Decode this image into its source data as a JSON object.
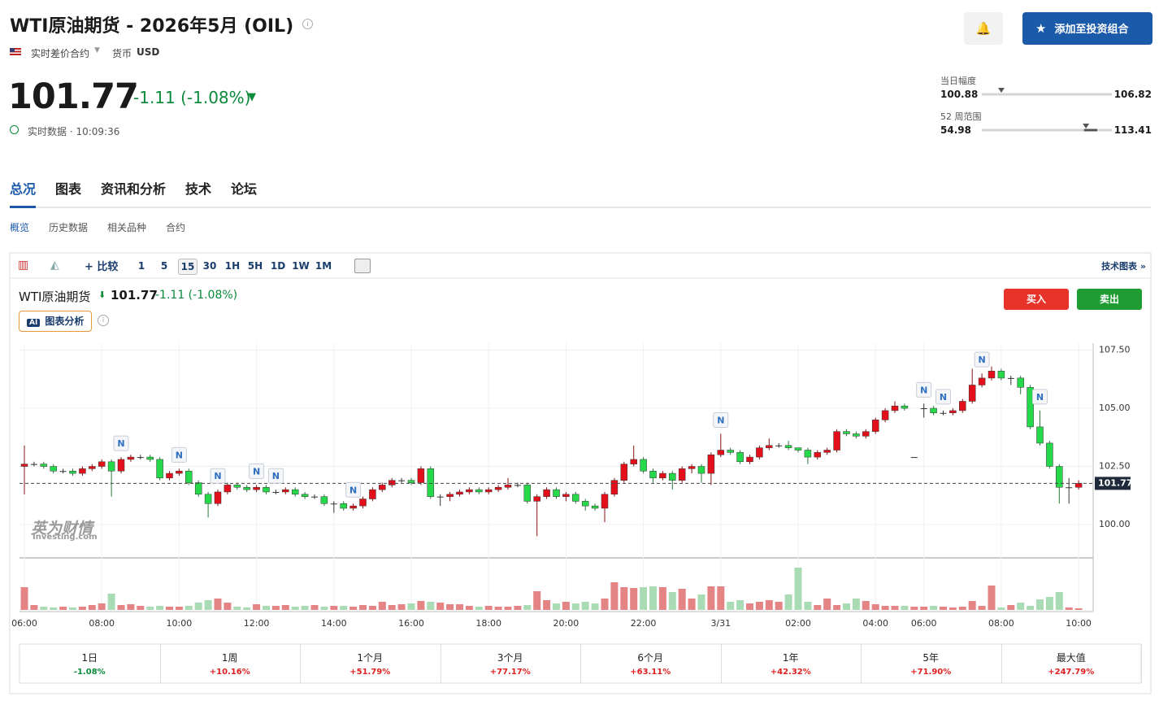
{
  "header": {
    "title": "WTI原油期货 - 2026年5月 (OIL)",
    "contract": "实时差价合约",
    "currency_label": "货币",
    "currency": "USD",
    "portfolio_button": "添加至投资组合"
  },
  "quote": {
    "price": 101.77,
    "change": "-1.11 (-1.08%)",
    "status": "实时数据 · 10:09:36"
  },
  "ranges": {
    "day_label": "当日幅度",
    "day_low": 100.88,
    "day_high": 106.82,
    "week52_label": "52 周范围",
    "week52_low": 54.98,
    "week52_high": 113.41
  },
  "tabs": [
    "总况",
    "图表",
    "资讯和分析",
    "技术",
    "论坛"
  ],
  "subtabs": [
    "概览",
    "历史数据",
    "相关品种",
    "合约"
  ],
  "toolbar": {
    "compare": "比较",
    "intervals": [
      "1",
      "5",
      "15",
      "30",
      "1H",
      "5H",
      "1D",
      "1W",
      "1M"
    ],
    "active_interval": "15",
    "link": "技术图表 »"
  },
  "legend": {
    "name": "WTI原油期货",
    "change": "-1.11 (-1.08%)",
    "ai": "图表分析",
    "buy": "买入",
    "sell": "卖出"
  },
  "watermark": {
    "cn": "英为财情",
    "en": "Investing.com"
  },
  "chart_data": {
    "type": "candlestick",
    "categories": [
      "06:00",
      null,
      null,
      null,
      null,
      null,
      null,
      null,
      "08:00",
      null,
      null,
      null,
      null,
      null,
      null,
      null,
      "10:00",
      null,
      null,
      null,
      null,
      null,
      null,
      null,
      "12:00",
      null,
      null,
      null,
      null,
      null,
      null,
      null,
      "14:00",
      null,
      null,
      null,
      null,
      null,
      null,
      null,
      "16:00",
      null,
      null,
      null,
      null,
      null,
      null,
      null,
      "18:00",
      null,
      null,
      null,
      null,
      null,
      null,
      null,
      "20:00",
      null,
      null,
      null,
      null,
      null,
      null,
      null,
      "22:00",
      null,
      null,
      null,
      null,
      null,
      null,
      null,
      "3/31",
      null,
      null,
      null,
      null,
      null,
      null,
      null,
      "02:00",
      null,
      null,
      null,
      null,
      null,
      null,
      null,
      "04:00",
      null,
      null,
      null,
      null,
      "06:00",
      null,
      null,
      null,
      null,
      null,
      null,
      null,
      "08:00",
      null,
      null,
      null,
      null,
      null,
      null,
      null,
      "10:00"
    ],
    "open": [
      102.5,
      102.6,
      102.6,
      102.5,
      102.3,
      102.3,
      102.2,
      102.4,
      102.5,
      102.7,
      102.3,
      102.8,
      102.9,
      102.9,
      102.8,
      102.0,
      102.2,
      102.3,
      101.8,
      101.3,
      100.9,
      101.4,
      101.7,
      101.6,
      101.5,
      101.6,
      101.4,
      101.4,
      101.5,
      101.3,
      101.2,
      101.2,
      100.9,
      100.9,
      100.7,
      100.8,
      101.1,
      101.5,
      101.7,
      101.9,
      101.9,
      101.8,
      102.4,
      101.2,
      101.2,
      101.3,
      101.4,
      101.5,
      101.4,
      101.5,
      101.6,
      101.7,
      101.7,
      101.0,
      101.2,
      101.5,
      101.2,
      101.3,
      101.0,
      100.8,
      100.7,
      101.3,
      101.9,
      102.6,
      102.8,
      102.3,
      102.0,
      102.2,
      101.9,
      102.4,
      102.5,
      102.2,
      103.0,
      103.2,
      103.1,
      102.7,
      102.9,
      103.3,
      103.4,
      103.4,
      103.3,
      103.2,
      102.9,
      103.1,
      103.2,
      104.0,
      103.9,
      103.8,
      104.0,
      104.5,
      104.9,
      105.1,
      102.9,
      105.0,
      105.0,
      104.8,
      104.8,
      104.9,
      105.3,
      106.0,
      106.3,
      106.6,
      106.3,
      106.3,
      105.9,
      104.2,
      103.5,
      102.5,
      101.6,
      101.6
    ],
    "high": [
      103.4,
      102.7,
      102.7,
      102.6,
      102.4,
      102.4,
      102.5,
      102.6,
      102.8,
      102.8,
      102.9,
      103.0,
      103.0,
      103.0,
      102.9,
      102.3,
      102.4,
      102.4,
      101.9,
      101.4,
      101.5,
      101.8,
      101.8,
      101.7,
      101.7,
      101.7,
      101.5,
      101.6,
      101.6,
      101.4,
      101.3,
      101.3,
      101.0,
      101.0,
      100.9,
      101.2,
      101.6,
      101.8,
      102.0,
      102.0,
      102.0,
      102.5,
      102.5,
      101.3,
      101.4,
      101.5,
      101.6,
      101.6,
      101.6,
      101.7,
      102.0,
      101.8,
      101.8,
      101.3,
      101.6,
      101.6,
      101.4,
      101.4,
      101.1,
      100.9,
      101.4,
      102.0,
      102.7,
      103.4,
      102.9,
      102.4,
      102.3,
      102.3,
      102.5,
      102.6,
      102.6,
      103.1,
      103.9,
      103.3,
      103.2,
      103.0,
      103.4,
      103.7,
      103.5,
      103.6,
      103.3,
      103.3,
      103.2,
      103.3,
      104.1,
      104.1,
      104.0,
      104.1,
      104.6,
      105.0,
      105.3,
      105.2,
      102.9,
      105.2,
      105.1,
      104.9,
      105.0,
      105.4,
      106.7,
      106.5,
      106.8,
      106.7,
      106.4,
      106.4,
      106.0,
      104.9,
      103.6,
      102.6,
      102.0,
      101.9
    ],
    "low": [
      101.3,
      102.5,
      102.4,
      102.2,
      102.2,
      102.1,
      102.1,
      102.3,
      102.4,
      101.2,
      102.2,
      102.7,
      102.8,
      102.7,
      101.9,
      101.9,
      102.1,
      101.7,
      101.2,
      100.3,
      100.8,
      101.3,
      101.5,
      101.4,
      101.4,
      101.3,
      101.3,
      101.3,
      101.2,
      101.1,
      101.1,
      100.8,
      100.5,
      100.6,
      100.6,
      100.7,
      101.0,
      101.4,
      101.6,
      101.8,
      101.7,
      101.7,
      101.1,
      100.8,
      101.0,
      101.2,
      101.3,
      101.3,
      101.3,
      101.4,
      101.5,
      101.6,
      100.9,
      99.5,
      101.1,
      101.1,
      101.0,
      100.9,
      100.6,
      100.6,
      100.1,
      101.2,
      101.8,
      102.5,
      102.2,
      101.8,
      101.9,
      101.5,
      101.8,
      102.2,
      101.8,
      101.7,
      102.9,
      103.0,
      102.6,
      102.6,
      102.8,
      103.2,
      103.3,
      103.2,
      103.1,
      102.6,
      102.8,
      103.0,
      103.1,
      103.8,
      103.7,
      103.7,
      103.9,
      104.4,
      104.8,
      104.9,
      102.9,
      104.6,
      104.7,
      104.7,
      104.7,
      104.8,
      105.2,
      105.9,
      106.2,
      106.2,
      106.0,
      105.6,
      104.1,
      103.4,
      102.4,
      100.9,
      100.9,
      101.5
    ],
    "close": [
      102.6,
      102.6,
      102.5,
      102.3,
      102.3,
      102.2,
      102.4,
      102.5,
      102.7,
      102.3,
      102.8,
      102.9,
      102.9,
      102.8,
      102.0,
      102.2,
      102.3,
      101.8,
      101.3,
      100.9,
      101.4,
      101.7,
      101.6,
      101.5,
      101.6,
      101.4,
      101.4,
      101.5,
      101.3,
      101.2,
      101.2,
      100.9,
      100.9,
      100.7,
      100.8,
      101.1,
      101.5,
      101.7,
      101.9,
      101.9,
      101.8,
      102.4,
      101.2,
      101.2,
      101.3,
      101.4,
      101.5,
      101.4,
      101.5,
      101.6,
      101.7,
      101.7,
      101.0,
      101.2,
      101.5,
      101.2,
      101.3,
      101.0,
      100.8,
      100.7,
      101.3,
      101.9,
      102.6,
      102.8,
      102.3,
      102.0,
      102.2,
      101.9,
      102.4,
      102.5,
      102.2,
      103.0,
      103.2,
      103.1,
      102.7,
      102.9,
      103.3,
      103.4,
      103.4,
      103.3,
      103.2,
      102.9,
      103.1,
      103.2,
      104.0,
      103.9,
      103.8,
      104.0,
      104.5,
      104.9,
      105.1,
      105.0,
      102.9,
      105.0,
      104.8,
      104.8,
      104.9,
      105.3,
      106.0,
      106.3,
      106.6,
      106.3,
      106.3,
      105.9,
      104.2,
      103.5,
      102.5,
      101.6,
      101.6,
      101.77
    ],
    "volume": [
      28,
      6,
      4,
      3,
      4,
      3,
      4,
      6,
      8,
      20,
      6,
      7,
      5,
      4,
      5,
      4,
      4,
      5,
      9,
      12,
      14,
      9,
      4,
      3,
      7,
      5,
      5,
      6,
      4,
      5,
      6,
      4,
      5,
      5,
      4,
      6,
      5,
      10,
      6,
      7,
      8,
      11,
      10,
      9,
      7,
      7,
      5,
      4,
      5,
      4,
      4,
      5,
      6,
      23,
      12,
      8,
      10,
      8,
      10,
      8,
      14,
      34,
      28,
      27,
      28,
      29,
      28,
      22,
      26,
      14,
      19,
      29,
      29,
      10,
      12,
      8,
      10,
      12,
      10,
      19,
      52,
      10,
      6,
      14,
      6,
      8,
      14,
      11,
      7,
      5,
      5,
      5,
      4,
      4,
      5,
      4,
      3,
      4,
      11,
      5,
      30,
      3,
      6,
      9,
      5,
      13,
      16,
      22,
      3,
      2
    ],
    "vlim": [
      0,
      60
    ],
    "ylim": [
      98.6,
      107.8
    ],
    "yticks": [
      {
        "value": 100,
        "label": "100.00"
      },
      {
        "value": 102.5,
        "label": "102.50"
      },
      {
        "value": 105,
        "label": "105.00"
      },
      {
        "value": 107.5,
        "label": "107.50"
      }
    ],
    "last_price": 101.77,
    "news": {
      "label": "N",
      "indices": [
        10,
        16,
        20,
        24,
        26,
        34,
        72,
        93,
        95,
        99,
        105
      ]
    },
    "up_color": "#e3101c",
    "down_color": "#26d94a",
    "doji_color": "#333333",
    "volume_up_color": "#e58484",
    "volume_down_color": "#a9dcb5",
    "grid": true
  },
  "performance": {
    "periods": [
      "1日",
      "1周",
      "1个月",
      "3个月",
      "6个月",
      "1年",
      "5年",
      "最大值"
    ],
    "values": [
      "-1.08%",
      "+10.16%",
      "+51.79%",
      "+77.17%",
      "+63.11%",
      "+42.32%",
      "+71.90%",
      "+247.79%"
    ]
  }
}
